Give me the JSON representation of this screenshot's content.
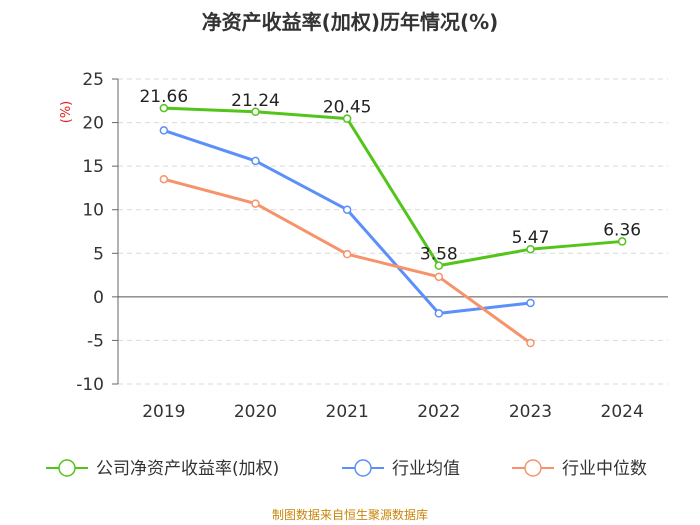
{
  "chart_data": {
    "type": "line",
    "title": "净资产收益率(加权)历年情况(%)",
    "ylabel": "(%)",
    "categories": [
      "2019",
      "2020",
      "2021",
      "2022",
      "2023",
      "2024"
    ],
    "ylim": [
      -10,
      25
    ],
    "yticks": [
      25,
      20,
      15,
      10,
      5,
      0,
      -5,
      -10
    ],
    "grid": true,
    "legend_position": "bottom",
    "series": [
      {
        "name": "公司净资产收益率(加权)",
        "color": "#52c41a",
        "values": [
          21.66,
          21.24,
          20.45,
          3.58,
          5.47,
          6.36
        ],
        "labels": [
          "21.66",
          "21.24",
          "20.45",
          "3.58",
          "5.47",
          "6.36"
        ]
      },
      {
        "name": "行业均值",
        "color": "#5b8ff9",
        "values": [
          19.1,
          15.6,
          10.0,
          -1.9,
          -0.7,
          null
        ]
      },
      {
        "name": "行业中位数",
        "color": "#f6936a",
        "values": [
          13.5,
          10.7,
          4.9,
          2.3,
          -5.3,
          null
        ]
      }
    ]
  },
  "footer": {
    "source": "制图数据来自恒生聚源数据库"
  }
}
